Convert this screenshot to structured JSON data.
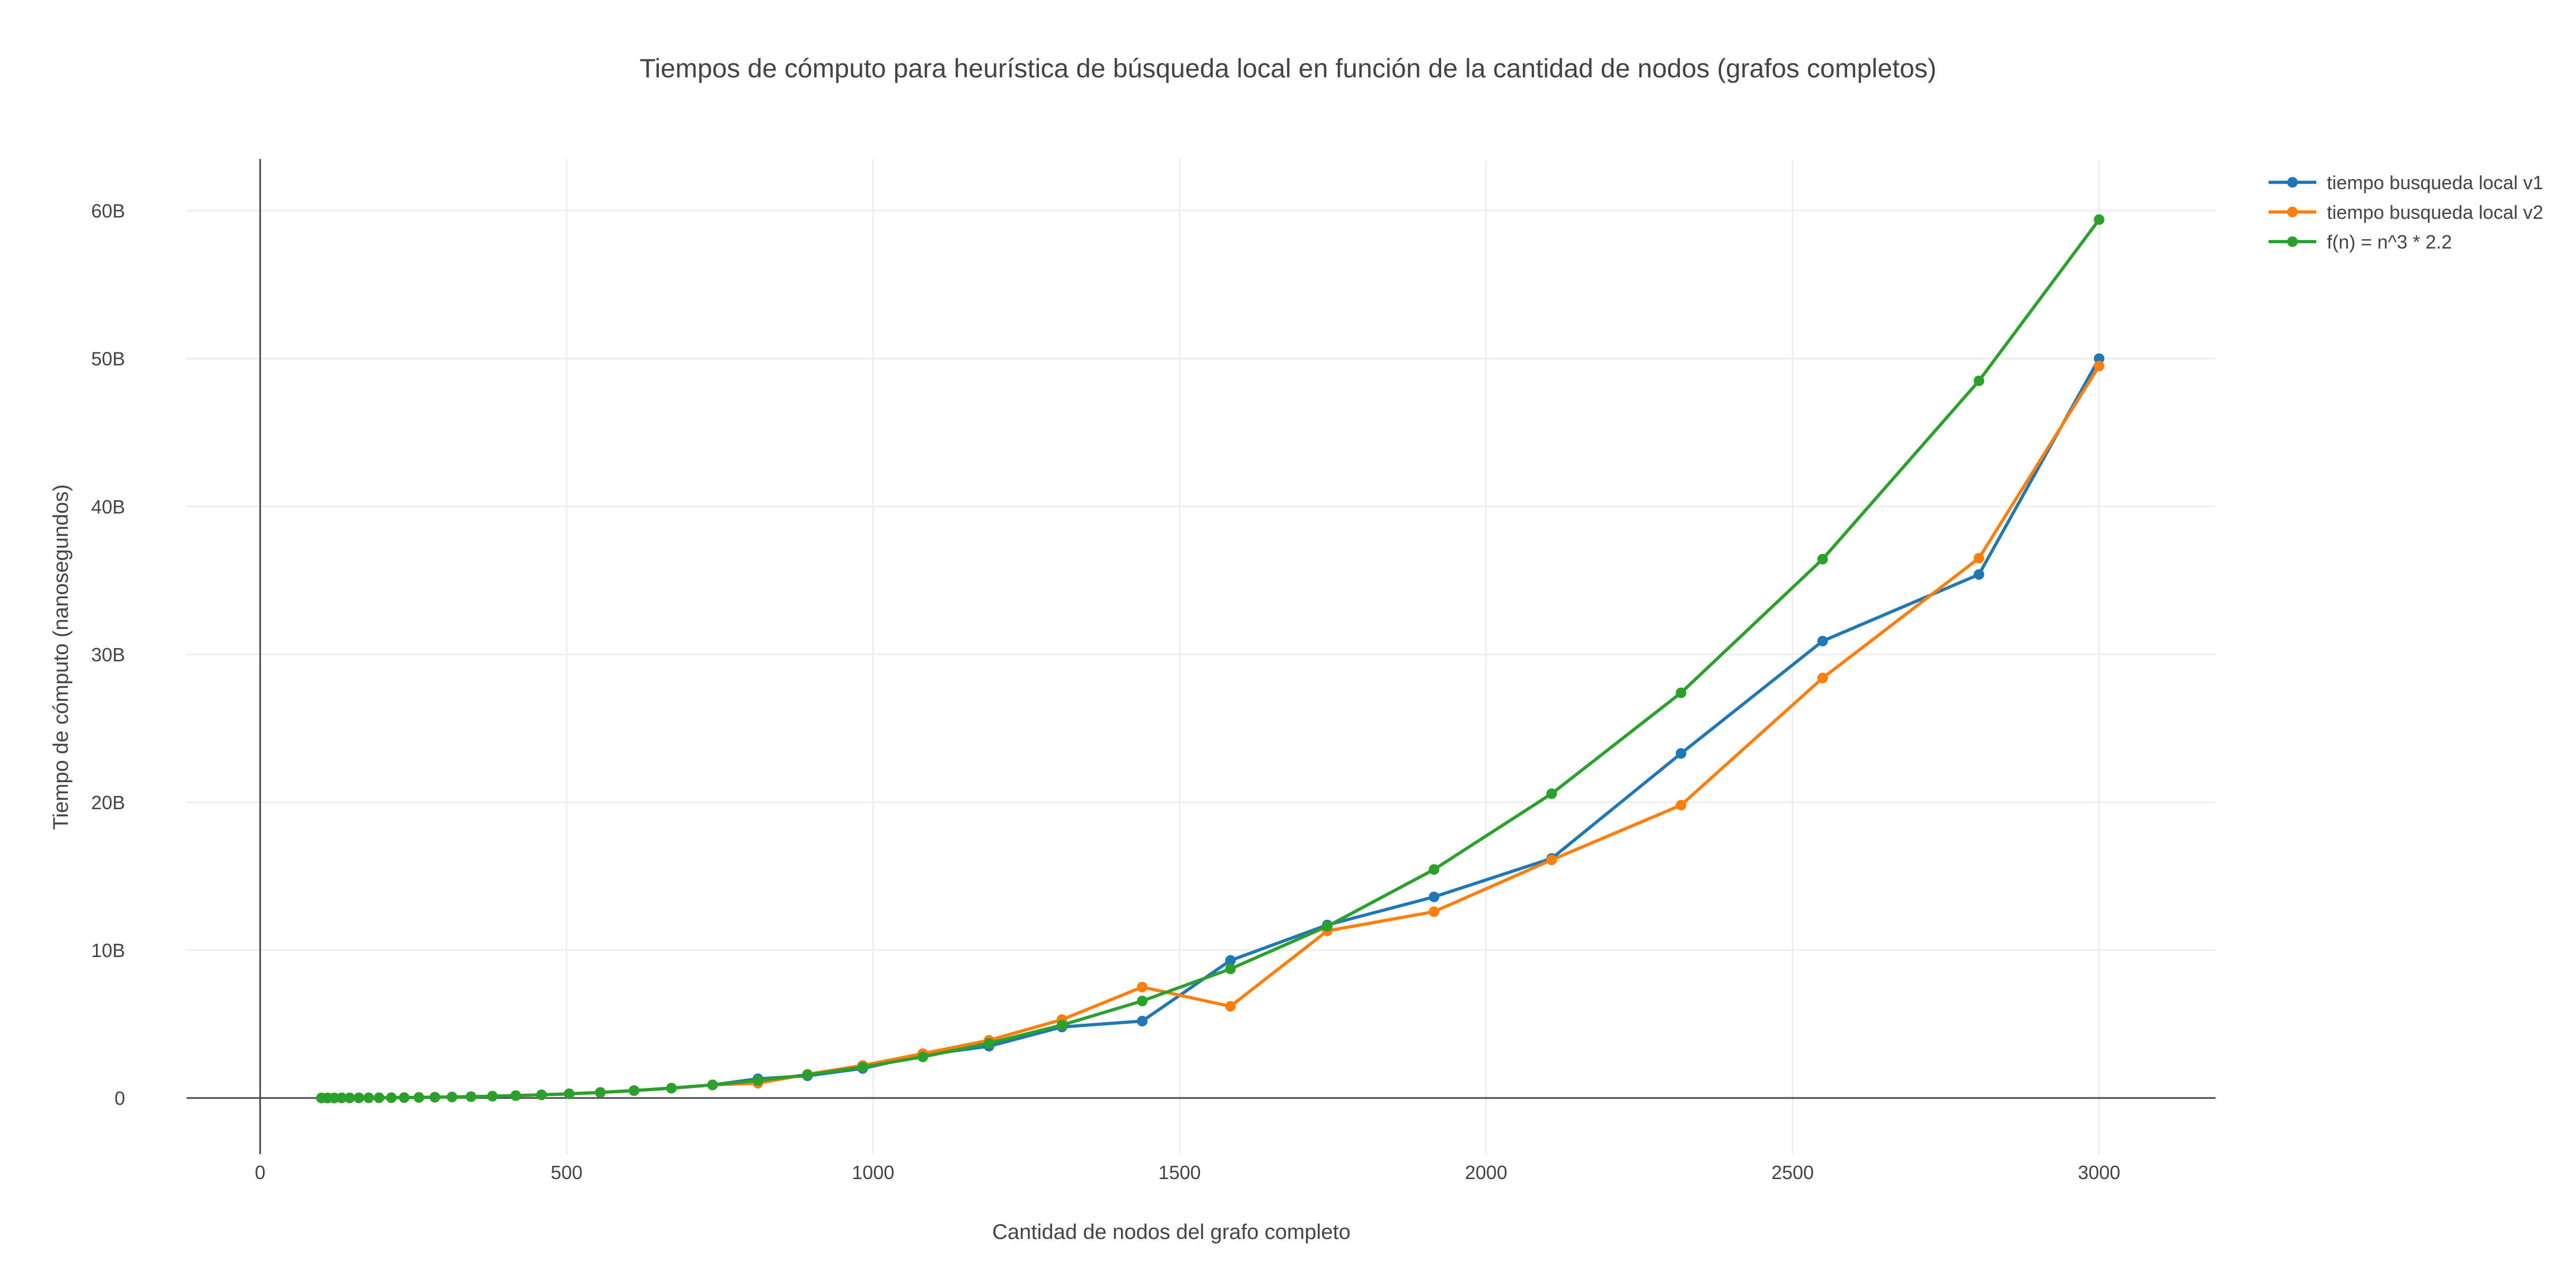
{
  "chart_data": {
    "type": "line",
    "title": "Tiempos de cómputo para heurística de búsqueda local en función de la cantidad de nodos (grafos completos)",
    "xlabel": "Cantidad de nodos del grafo completo",
    "ylabel": "Tiempo de cómputo (nanosegundos)",
    "xlim": [
      -120,
      3190
    ],
    "ylim": [
      -3800000000,
      63500000000
    ],
    "x_ticks": [
      0,
      500,
      1000,
      1500,
      2000,
      2500,
      3000
    ],
    "x_tick_labels": [
      "0",
      "500",
      "1000",
      "1500",
      "2000",
      "2500",
      "3000"
    ],
    "y_ticks": [
      0,
      10000000000,
      20000000000,
      30000000000,
      40000000000,
      50000000000,
      60000000000
    ],
    "y_tick_labels": [
      "0",
      "10B",
      "20B",
      "30B",
      "40B",
      "50B",
      "60B"
    ],
    "grid": true,
    "legend_position": "top-right",
    "x": [
      100,
      110,
      121,
      133,
      146,
      161,
      177,
      194,
      214,
      235,
      259,
      285,
      313,
      344,
      379,
      417,
      459,
      504,
      555,
      610,
      671,
      738,
      812,
      893,
      983,
      1081,
      1189,
      1308,
      1439,
      1583,
      1741,
      1915,
      2107,
      2318,
      2549,
      2804,
      3000
    ],
    "series": [
      {
        "name": "tiempo busqueda local v1",
        "color": "#1f77b4",
        "values": [
          2200000,
          2900000,
          3900000,
          5200000,
          6800000,
          9200000,
          12300000,
          16100000,
          21600000,
          28600000,
          38200000,
          50900000,
          67500000,
          89600000,
          119800000,
          159500000,
          212700000,
          281400000,
          376000000,
          499400000,
          665000000,
          885000000,
          1300000000,
          1500000000,
          2000000000,
          2900000000,
          3500000000,
          4800000000,
          5200000000,
          9300000000,
          11700000000,
          13600000000,
          16200000000,
          23300000000,
          30900000000,
          35400000000,
          50000000000
        ]
      },
      {
        "name": "tiempo busqueda local v2",
        "color": "#ff7f0e",
        "values": [
          2200000,
          2900000,
          3900000,
          5200000,
          6800000,
          9200000,
          12300000,
          16100000,
          21600000,
          28600000,
          38200000,
          50900000,
          67500000,
          89600000,
          119800000,
          159500000,
          212700000,
          281400000,
          376000000,
          499400000,
          665000000,
          885000000,
          1000000000,
          1600000000,
          2200000000,
          3000000000,
          3900000000,
          5300000000,
          7500000000,
          6200000000,
          11300000000,
          12600000000,
          16100000000,
          19800000000,
          28400000000,
          36500000000,
          49500000000
        ]
      },
      {
        "name": "f(n) = n^3 * 2.2",
        "color": "#2ca02c",
        "values": [
          2200000,
          2900000,
          3900000,
          5200000,
          6800000,
          9200000,
          12300000,
          16100000,
          21600000,
          28600000,
          38200000,
          50900000,
          67500000,
          89600000,
          119800000,
          159500000,
          212700000,
          281400000,
          376000000,
          499400000,
          665000000,
          885000000,
          1180000000,
          1570000000,
          2090000000,
          2780000000,
          3700000000,
          4930000000,
          6560000000,
          8730000000,
          11610000000,
          15450000000,
          20580000000,
          27400000000,
          36440000000,
          48500000000,
          59400000000
        ]
      }
    ]
  }
}
